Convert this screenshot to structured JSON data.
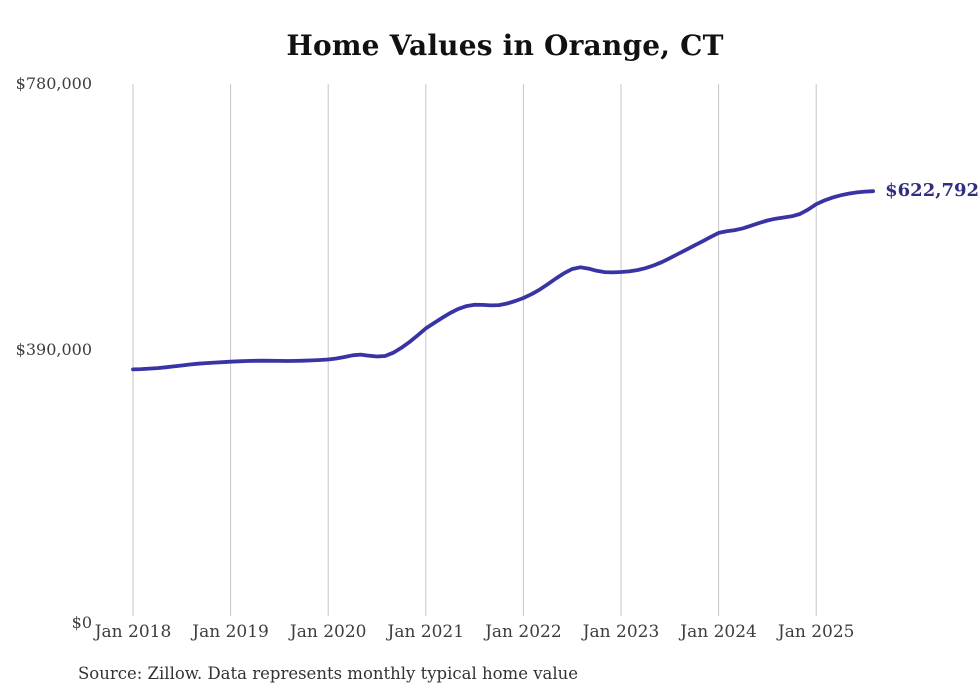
{
  "title": "Home Values in Orange, CT",
  "final_value_label": "$622,792",
  "source_note": "Source: Zillow. Data represents monthly typical home value",
  "colors": {
    "line": "#3834a4",
    "final_value_label": "#312e81",
    "grid": "#c6c6c6",
    "axis_text": "#3d3d3d",
    "title_text": "#111111",
    "source_text": "#333333"
  },
  "chart_data": {
    "type": "line",
    "title": "Home Values in Orange, CT",
    "xlabel": "",
    "ylabel": "",
    "legend": "none",
    "grid": "vertical-only",
    "ylim": [
      0,
      780000
    ],
    "y_ticks": [
      {
        "label": "$0",
        "value": 0
      },
      {
        "label": "$390,000",
        "value": 390000
      },
      {
        "label": "$780,000",
        "value": 780000
      }
    ],
    "x_ticks": [
      "Jan 2018",
      "Jan 2019",
      "Jan 2020",
      "Jan 2021",
      "Jan 2022",
      "Jan 2023",
      "Jan 2024",
      "Jan 2025"
    ],
    "x_frequency": "monthly",
    "x_start": "2018-01",
    "x_end": "2025-08",
    "series": [
      {
        "name": "Typical home value",
        "final_value": 622792,
        "values": [
          361500,
          362000,
          362700,
          363500,
          364600,
          365900,
          367300,
          368700,
          369900,
          370800,
          371500,
          372100,
          372800,
          373400,
          373900,
          374200,
          374300,
          374200,
          374000,
          373900,
          374000,
          374300,
          374800,
          375400,
          376100,
          377500,
          379800,
          382300,
          383200,
          381600,
          380400,
          381200,
          386000,
          393200,
          401800,
          411500,
          421700,
          429500,
          437000,
          444200,
          450300,
          454400,
          456300,
          456100,
          455400,
          455900,
          458200,
          461900,
          466200,
          471800,
          478600,
          486500,
          494800,
          502600,
          508700,
          511200,
          509400,
          506100,
          504200,
          503800,
          504400,
          505300,
          507100,
          510000,
          513900,
          518800,
          524600,
          530700,
          536900,
          543000,
          549200,
          555600,
          561700,
          564100,
          565800,
          568500,
          572300,
          576400,
          579900,
          582500,
          584300,
          586000,
          589400,
          595800,
          603800,
          609200,
          613500,
          616800,
          619300,
          621000,
          622300,
          622792
        ]
      }
    ]
  }
}
